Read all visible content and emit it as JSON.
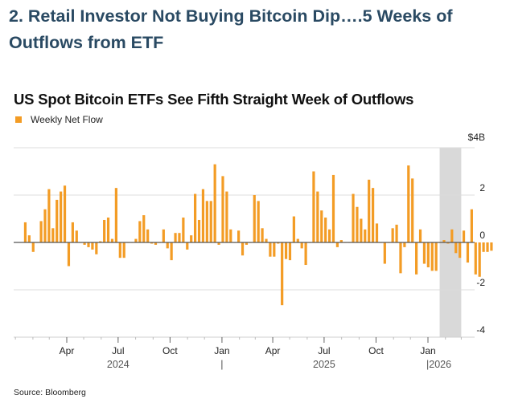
{
  "headline": "2. Retail Investor Not Buying Bitcoin Dip….5 Weeks of Outflows from ETF",
  "source": "Source: Bloomberg",
  "colors": {
    "bar": "#f39c25",
    "shade": "#d9d9d9",
    "grid": "#dcdcdc",
    "zero_line": "#555555",
    "headline": "#2a4a63"
  },
  "chart_data": {
    "type": "bar",
    "title": "US Spot Bitcoin ETFs See Fifth Straight Week of Outflows",
    "legend": [
      {
        "name": "Weekly Net Flow",
        "color": "#f39c25"
      }
    ],
    "legend_position": "top-left",
    "xlabel": "",
    "ylabel": "",
    "y_unit_label": "$4B",
    "ylim": [
      -4,
      4
    ],
    "yticks": [
      4,
      2,
      0,
      -2,
      -4
    ],
    "ytick_labels": [
      "$4B",
      "2",
      "0",
      "-2",
      "-4"
    ],
    "y_axis_side": "right",
    "grid": true,
    "x_start": "2024-01-15",
    "x_end": "2026-02-28",
    "x_ticks": [
      {
        "label": "Apr",
        "date": "2024-04-01"
      },
      {
        "label": "Jul",
        "date": "2024-07-01"
      },
      {
        "label": "Oct",
        "date": "2024-10-01"
      },
      {
        "label": "Jan",
        "date": "2025-01-01"
      },
      {
        "label": "Apr",
        "date": "2025-04-01"
      },
      {
        "label": "Jul",
        "date": "2025-07-01"
      },
      {
        "label": "Oct",
        "date": "2025-10-01"
      },
      {
        "label": "Jan",
        "date": "2026-01-01"
      }
    ],
    "year_labels": [
      {
        "label": "2024",
        "date": "2024-07-01"
      },
      {
        "label": "|",
        "date": "2025-01-01"
      },
      {
        "label": "2025",
        "date": "2025-07-01"
      },
      {
        "label": "|2026",
        "date": "2026-01-15"
      }
    ],
    "highlight_region": {
      "start": "2026-01-26",
      "end": "2026-03-01",
      "note": "five straight weeks of outflows"
    },
    "series": [
      {
        "name": "Weekly Net Flow",
        "unit": "$B",
        "week_start": "2024-01-15",
        "values": [
          0.85,
          0.3,
          -0.4,
          0.0,
          0.9,
          1.4,
          2.25,
          0.6,
          1.8,
          2.15,
          2.4,
          -1.0,
          0.85,
          0.5,
          0.0,
          -0.1,
          -0.2,
          -0.3,
          -0.5,
          0.05,
          0.95,
          1.05,
          0.15,
          2.3,
          -0.65,
          -0.65,
          0.0,
          0.0,
          0.15,
          0.9,
          1.15,
          0.55,
          -0.05,
          -0.1,
          0.0,
          0.55,
          -0.25,
          -0.75,
          0.4,
          0.4,
          1.05,
          -0.3,
          0.3,
          2.05,
          0.95,
          2.25,
          1.75,
          1.75,
          3.3,
          -0.1,
          2.8,
          2.15,
          0.55,
          0.0,
          0.5,
          -0.55,
          -0.1,
          0.0,
          2.0,
          1.75,
          0.6,
          0.15,
          -0.6,
          -0.6,
          -0.05,
          -2.65,
          -0.7,
          -0.75,
          1.1,
          0.15,
          -0.25,
          -0.95,
          0.0,
          3.0,
          2.15,
          1.35,
          1.05,
          0.55,
          2.85,
          -0.2,
          0.1,
          0.0,
          0.0,
          2.05,
          1.5,
          1.0,
          0.55,
          2.65,
          2.3,
          0.8,
          0.0,
          -0.9,
          0.0,
          0.6,
          0.75,
          -1.3,
          -0.2,
          3.25,
          2.7,
          -1.35,
          0.55,
          -0.9,
          -1.05,
          -1.2,
          -1.2,
          0.0,
          0.1,
          -0.05,
          0.55,
          -0.45,
          -0.65,
          0.5,
          -0.85,
          1.4,
          -1.35,
          -1.45,
          -0.4,
          -0.4,
          -0.35
        ]
      }
    ]
  }
}
